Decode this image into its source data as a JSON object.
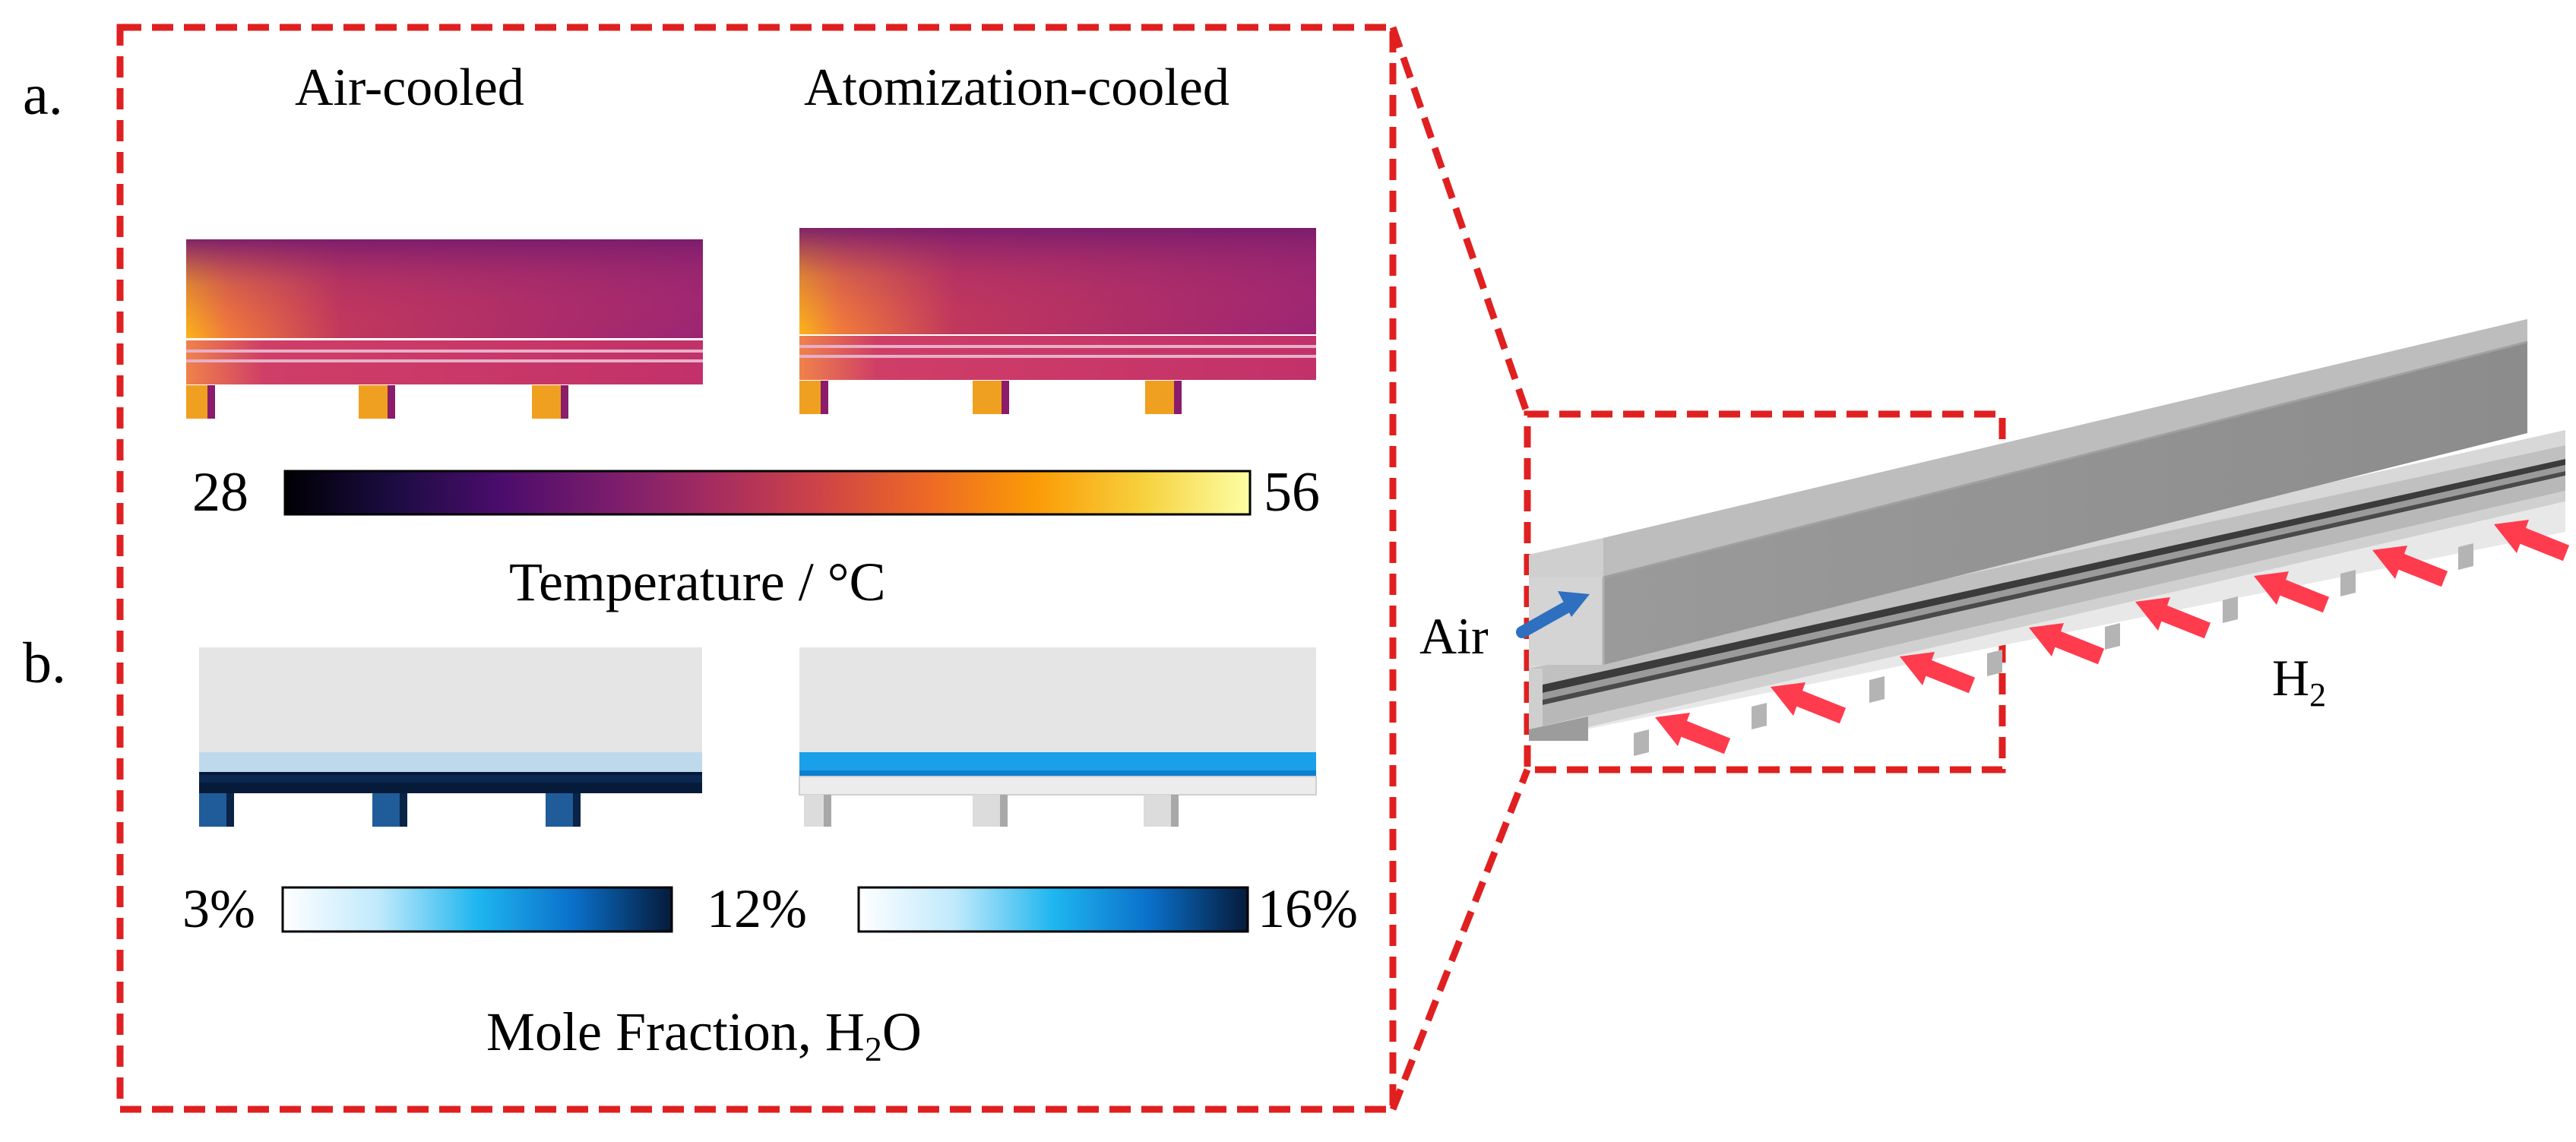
{
  "panels": {
    "a": {
      "letter": "a.",
      "left_title": "Air-cooled",
      "right_title": "Atomization-cooled",
      "colorbar": {
        "min_label": "28",
        "max_label": "56",
        "title": "Temperature / °C",
        "colors": [
          "#000004",
          "#1b0c41",
          "#4a0c6b",
          "#781c6d",
          "#a52c60",
          "#cf4446",
          "#ed6925",
          "#fb9b06",
          "#f7d13d",
          "#fcffa4"
        ]
      }
    },
    "b": {
      "letter": "b.",
      "left_colorbar": {
        "min_label": "3%",
        "max_label": "12%"
      },
      "right_colorbar": {
        "max_label": "16%"
      },
      "colorbar_colors": [
        "#ffffff",
        "#bfe9fb",
        "#1fb6f0",
        "#0a6fc9",
        "#061a3a"
      ],
      "title_prefix": "Mole Fraction, H",
      "title_sub": "2",
      "title_suffix": "O"
    }
  },
  "model": {
    "air_label": "Air",
    "h2_label": "H",
    "h2_sub": "2",
    "air_arrow_color": "#2f6fc0",
    "h2_arrow_color": "#ff3b4e"
  },
  "frame_color": "#e02020"
}
